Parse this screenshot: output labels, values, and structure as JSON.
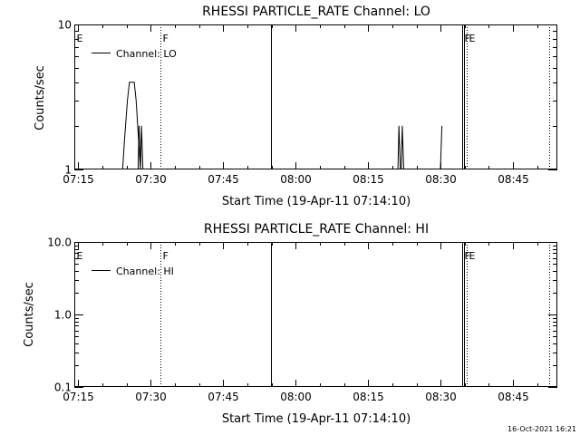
{
  "footer": {
    "timestamp": "16-Oct-2021 16:21"
  },
  "chart_data": [
    {
      "type": "line",
      "title": "RHESSI PARTICLE_RATE Channel: LO",
      "xlabel": "Start Time (19-Apr-11 07:14:10)",
      "ylabel": "Counts/sec",
      "yscale": "log",
      "x_unit": "minutes after 07:14:10",
      "xlim": [
        0,
        100
      ],
      "ylim": [
        1,
        10
      ],
      "x_ticks": [
        {
          "t": 0.83,
          "label": "07:15"
        },
        {
          "t": 15.83,
          "label": "07:30"
        },
        {
          "t": 30.83,
          "label": "07:45"
        },
        {
          "t": 45.83,
          "label": "08:00"
        },
        {
          "t": 60.83,
          "label": "08:15"
        },
        {
          "t": 75.83,
          "label": "08:30"
        },
        {
          "t": 90.83,
          "label": "08:45"
        }
      ],
      "y_ticks": [
        {
          "v": 1,
          "label": "1"
        },
        {
          "v": 10,
          "label": "10"
        }
      ],
      "y_minor": [
        2,
        3,
        4,
        5,
        6,
        7,
        8,
        9
      ],
      "legend": {
        "label": "Channel: LO",
        "placement": "top-left"
      },
      "markers": [
        {
          "t": 0,
          "style": "dotted",
          "label": "E"
        },
        {
          "t": 17.9,
          "style": "dotted",
          "label": "F"
        },
        {
          "t": 40.7,
          "style": "solid",
          "label": ""
        },
        {
          "t": 80.3,
          "style": "solid",
          "label": "F"
        },
        {
          "t": 80.7,
          "style": "solid",
          "label": ""
        },
        {
          "t": 81.2,
          "style": "dotted",
          "label": "E"
        },
        {
          "t": 98.4,
          "style": "dotted",
          "label": ""
        }
      ],
      "series": [
        {
          "segments": [
            [
              [
                10.0,
                1
              ],
              [
                10.4,
                1.6
              ],
              [
                11.0,
                3.0
              ],
              [
                11.4,
                4.0
              ],
              [
                12.4,
                4.0
              ],
              [
                12.8,
                3.0
              ],
              [
                13.3,
                1.6
              ],
              [
                13.7,
                1.0
              ]
            ],
            [
              [
                13.2,
                1.0
              ],
              [
                13.4,
                2.0
              ],
              [
                13.7,
                1.0
              ]
            ],
            [
              [
                13.7,
                1.0
              ],
              [
                13.9,
                2.0
              ],
              [
                14.2,
                1.0
              ]
            ],
            [
              [
                67.0,
                1.0
              ],
              [
                67.2,
                2.0
              ],
              [
                67.5,
                1.0
              ]
            ],
            [
              [
                67.7,
                1.0
              ],
              [
                67.9,
                2.0
              ],
              [
                68.2,
                1.0
              ]
            ],
            [
              [
                75.8,
                1.0
              ],
              [
                76.1,
                2.0
              ]
            ]
          ]
        }
      ]
    },
    {
      "type": "line",
      "title": "RHESSI PARTICLE_RATE Channel: HI",
      "xlabel": "Start Time (19-Apr-11 07:14:10)",
      "ylabel": "Counts/sec",
      "yscale": "log",
      "x_unit": "minutes after 07:14:10",
      "xlim": [
        0,
        100
      ],
      "ylim": [
        0.1,
        10
      ],
      "x_ticks": [
        {
          "t": 0.83,
          "label": "07:15"
        },
        {
          "t": 15.83,
          "label": "07:30"
        },
        {
          "t": 30.83,
          "label": "07:45"
        },
        {
          "t": 45.83,
          "label": "08:00"
        },
        {
          "t": 60.83,
          "label": "08:15"
        },
        {
          "t": 75.83,
          "label": "08:30"
        },
        {
          "t": 90.83,
          "label": "08:45"
        }
      ],
      "y_ticks": [
        {
          "v": 0.1,
          "label": "0.1"
        },
        {
          "v": 1,
          "label": "1.0"
        },
        {
          "v": 10,
          "label": "10.0"
        }
      ],
      "y_minor": [
        0.2,
        0.3,
        0.4,
        0.5,
        0.6,
        0.7,
        0.8,
        0.9,
        2,
        3,
        4,
        5,
        6,
        7,
        8,
        9
      ],
      "legend": {
        "label": "Channel: HI",
        "placement": "top-left"
      },
      "markers": [
        {
          "t": 0,
          "style": "dotted",
          "label": "E"
        },
        {
          "t": 17.9,
          "style": "dotted",
          "label": "F"
        },
        {
          "t": 40.7,
          "style": "solid",
          "label": ""
        },
        {
          "t": 80.3,
          "style": "solid",
          "label": "F"
        },
        {
          "t": 80.7,
          "style": "solid",
          "label": ""
        },
        {
          "t": 81.2,
          "style": "dotted",
          "label": "E"
        },
        {
          "t": 98.4,
          "style": "dotted",
          "label": ""
        }
      ],
      "series": [
        {
          "segments": []
        }
      ]
    }
  ]
}
